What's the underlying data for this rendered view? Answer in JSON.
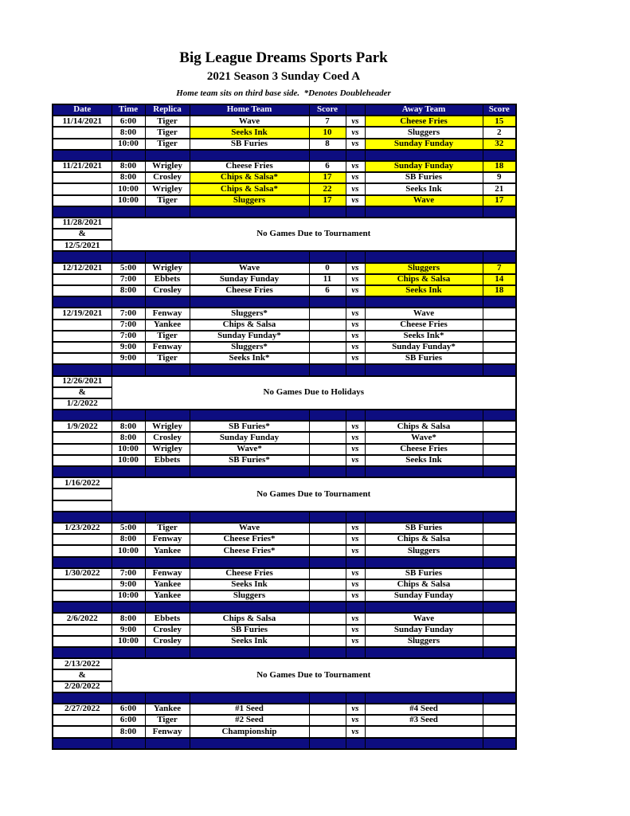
{
  "page": {
    "title": "Big League Dreams Sports Park",
    "subtitle": "2021 Season 3 Sunday Coed A",
    "note": "Home team sits on third base side.  *Denotes Doubleheader"
  },
  "colors": {
    "navy": "#0d0d80",
    "highlight": "#ffff00"
  },
  "table": {
    "headers": [
      "Date",
      "Time",
      "Replica",
      "Home Team",
      "Score",
      "",
      "Away Team",
      "Score"
    ],
    "vs_label": "vs",
    "blocks": [
      {
        "type": "games",
        "rows": [
          {
            "date": "11/14/2021",
            "time": "6:00",
            "replica": "Tiger",
            "home": "Wave",
            "home_score": "7",
            "home_hl": false,
            "away": "Cheese Fries",
            "away_score": "15",
            "away_hl": true
          },
          {
            "date": "",
            "time": "8:00",
            "replica": "Tiger",
            "home": "Seeks Ink",
            "home_score": "10",
            "home_hl": true,
            "away": "Sluggers",
            "away_score": "2",
            "away_hl": false
          },
          {
            "date": "",
            "time": "10:00",
            "replica": "Tiger",
            "home": "SB Furies",
            "home_score": "8",
            "home_hl": false,
            "away": "Sunday Funday",
            "away_score": "32",
            "away_hl": true
          }
        ]
      },
      {
        "type": "games",
        "rows": [
          {
            "date": "11/21/2021",
            "time": "8:00",
            "replica": "Wrigley",
            "home": "Cheese Fries",
            "home_score": "6",
            "home_hl": false,
            "away": "Sunday Funday",
            "away_score": "18",
            "away_hl": true
          },
          {
            "date": "",
            "time": "8:00",
            "replica": "Crosley",
            "home": "Chips & Salsa*",
            "home_score": "17",
            "home_hl": true,
            "away": "SB Furies",
            "away_score": "9",
            "away_hl": false
          },
          {
            "date": "",
            "time": "10:00",
            "replica": "Wrigley",
            "home": "Chips & Salsa*",
            "home_score": "22",
            "home_hl": true,
            "away": "Seeks Ink",
            "away_score": "21",
            "away_hl": false
          },
          {
            "date": "",
            "time": "10:00",
            "replica": "Tiger",
            "home": "Sluggers",
            "home_score": "17",
            "home_hl": true,
            "away": "Wave",
            "away_score": "17",
            "away_hl": true
          }
        ]
      },
      {
        "type": "notice",
        "date_lines": [
          "11/28/2021",
          "&",
          "12/5/2021"
        ],
        "text": "No Games Due to Tournament"
      },
      {
        "type": "games",
        "rows": [
          {
            "date": "12/12/2021",
            "time": "5:00",
            "replica": "Wrigley",
            "home": "Wave",
            "home_score": "0",
            "home_hl": false,
            "away": "Sluggers",
            "away_score": "7",
            "away_hl": true
          },
          {
            "date": "",
            "time": "7:00",
            "replica": "Ebbets",
            "home": "Sunday Funday",
            "home_score": "11",
            "home_hl": false,
            "away": "Chips & Salsa",
            "away_score": "14",
            "away_hl": true
          },
          {
            "date": "",
            "time": "8:00",
            "replica": "Crosley",
            "home": "Cheese Fries",
            "home_score": "6",
            "home_hl": false,
            "away": "Seeks Ink",
            "away_score": "18",
            "away_hl": true
          }
        ]
      },
      {
        "type": "games",
        "rows": [
          {
            "date": "12/19/2021",
            "time": "7:00",
            "replica": "Fenway",
            "home": "Sluggers*",
            "home_score": "",
            "home_hl": false,
            "away": "Wave",
            "away_score": "",
            "away_hl": false
          },
          {
            "date": "",
            "time": "7:00",
            "replica": "Yankee",
            "home": "Chips & Salsa",
            "home_score": "",
            "home_hl": false,
            "away": "Cheese Fries",
            "away_score": "",
            "away_hl": false
          },
          {
            "date": "",
            "time": "7:00",
            "replica": "Tiger",
            "home": "Sunday Funday*",
            "home_score": "",
            "home_hl": false,
            "away": "Seeks Ink*",
            "away_score": "",
            "away_hl": false
          },
          {
            "date": "",
            "time": "9:00",
            "replica": "Fenway",
            "home": "Sluggers*",
            "home_score": "",
            "home_hl": false,
            "away": "Sunday Funday*",
            "away_score": "",
            "away_hl": false
          },
          {
            "date": "",
            "time": "9:00",
            "replica": "Tiger",
            "home": "Seeks Ink*",
            "home_score": "",
            "home_hl": false,
            "away": "SB Furies",
            "away_score": "",
            "away_hl": false
          }
        ]
      },
      {
        "type": "notice",
        "date_lines": [
          "12/26/2021",
          "&",
          "1/2/2022"
        ],
        "text": "No Games Due to Holidays"
      },
      {
        "type": "games",
        "rows": [
          {
            "date": "1/9/2022",
            "time": "8:00",
            "replica": "Wrigley",
            "home": "SB Furies*",
            "home_score": "",
            "home_hl": false,
            "away": "Chips & Salsa",
            "away_score": "",
            "away_hl": false
          },
          {
            "date": "",
            "time": "8:00",
            "replica": "Crosley",
            "home": "Sunday Funday",
            "home_score": "",
            "home_hl": false,
            "away": "Wave*",
            "away_score": "",
            "away_hl": false
          },
          {
            "date": "",
            "time": "10:00",
            "replica": "Wrigley",
            "home": "Wave*",
            "home_score": "",
            "home_hl": false,
            "away": "Cheese Fries",
            "away_score": "",
            "away_hl": false
          },
          {
            "date": "",
            "time": "10:00",
            "replica": "Ebbets",
            "home": "SB Furies*",
            "home_score": "",
            "home_hl": false,
            "away": "Seeks Ink",
            "away_score": "",
            "away_hl": false
          }
        ]
      },
      {
        "type": "notice",
        "date_lines": [
          "1/16/2022",
          "",
          ""
        ],
        "text": "No Games Due to Tournament"
      },
      {
        "type": "games",
        "rows": [
          {
            "date": "1/23/2022",
            "time": "5:00",
            "replica": "Tiger",
            "home": "Wave",
            "home_score": "",
            "home_hl": false,
            "away": "SB Furies",
            "away_score": "",
            "away_hl": false
          },
          {
            "date": "",
            "time": "8:00",
            "replica": "Fenway",
            "home": "Cheese Fries*",
            "home_score": "",
            "home_hl": false,
            "away": "Chips & Salsa",
            "away_score": "",
            "away_hl": false
          },
          {
            "date": "",
            "time": "10:00",
            "replica": "Yankee",
            "home": "Cheese Fries*",
            "home_score": "",
            "home_hl": false,
            "away": "Sluggers",
            "away_score": "",
            "away_hl": false
          }
        ]
      },
      {
        "type": "games",
        "rows": [
          {
            "date": "1/30/2022",
            "time": "7:00",
            "replica": "Fenway",
            "home": "Cheese Fries",
            "home_score": "",
            "home_hl": false,
            "away": "SB Furies",
            "away_score": "",
            "away_hl": false
          },
          {
            "date": "",
            "time": "9:00",
            "replica": "Yankee",
            "home": "Seeks Ink",
            "home_score": "",
            "home_hl": false,
            "away": "Chips & Salsa",
            "away_score": "",
            "away_hl": false
          },
          {
            "date": "",
            "time": "10:00",
            "replica": "Yankee",
            "home": "Sluggers",
            "home_score": "",
            "home_hl": false,
            "away": "Sunday Funday",
            "away_score": "",
            "away_hl": false
          }
        ]
      },
      {
        "type": "games",
        "rows": [
          {
            "date": "2/6/2022",
            "time": "8:00",
            "replica": "Ebbets",
            "home": "Chips & Salsa",
            "home_score": "",
            "home_hl": false,
            "away": "Wave",
            "away_score": "",
            "away_hl": false
          },
          {
            "date": "",
            "time": "9:00",
            "replica": "Crosley",
            "home": "SB Furies",
            "home_score": "",
            "home_hl": false,
            "away": "Sunday Funday",
            "away_score": "",
            "away_hl": false
          },
          {
            "date": "",
            "time": "10:00",
            "replica": "Crosley",
            "home": "Seeks Ink",
            "home_score": "",
            "home_hl": false,
            "away": "Sluggers",
            "away_score": "",
            "away_hl": false
          }
        ]
      },
      {
        "type": "notice",
        "date_lines": [
          "2/13/2022",
          "&",
          "2/20/2022"
        ],
        "text": "No Games Due to Tournament"
      },
      {
        "type": "games",
        "rows": [
          {
            "date": "2/27/2022",
            "time": "6:00",
            "replica": "Yankee",
            "home": "#1 Seed",
            "home_score": "",
            "home_hl": false,
            "away": "#4 Seed",
            "away_score": "",
            "away_hl": false
          },
          {
            "date": "",
            "time": "6:00",
            "replica": "Tiger",
            "home": "#2 Seed",
            "home_score": "",
            "home_hl": false,
            "away": "#3 Seed",
            "away_score": "",
            "away_hl": false
          },
          {
            "date": "",
            "time": "8:00",
            "replica": "Fenway",
            "home": "Championship",
            "home_score": "",
            "home_hl": false,
            "away": "",
            "away_score": "",
            "away_hl": false
          }
        ]
      }
    ]
  }
}
